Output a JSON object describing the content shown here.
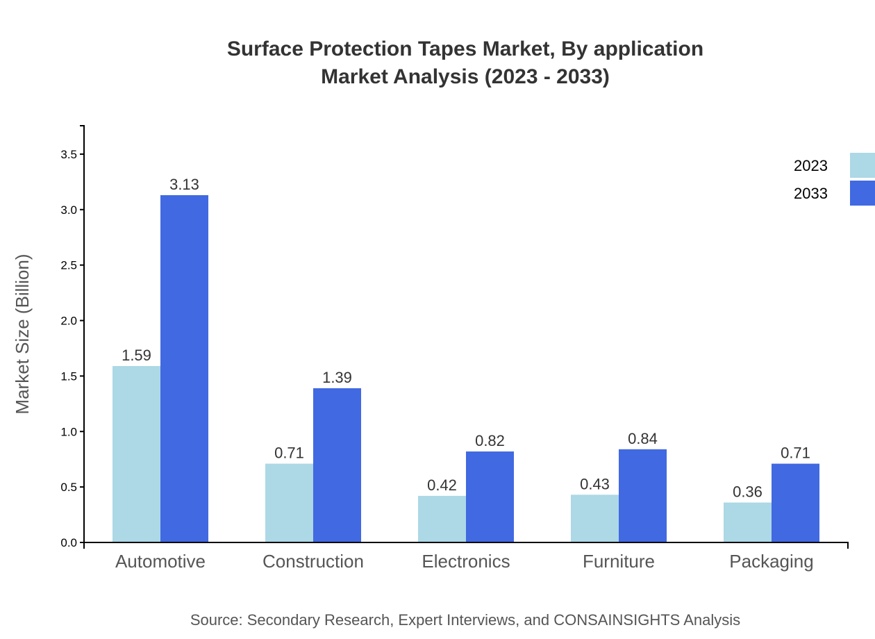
{
  "chart_data": {
    "type": "bar",
    "title": [
      "Surface Protection Tapes Market, By application",
      "Market Analysis (2023 - 2033)"
    ],
    "xlabel": "",
    "ylabel": "Market Size (Billion)",
    "categories": [
      "Automotive",
      "Construction",
      "Electronics",
      "Furniture",
      "Packaging"
    ],
    "series": [
      {
        "name": "2023",
        "color": "#add8e6",
        "values": [
          1.59,
          0.71,
          0.42,
          0.43,
          0.36
        ]
      },
      {
        "name": "2033",
        "color": "#4169e1",
        "values": [
          3.13,
          1.39,
          0.82,
          0.84,
          0.71
        ]
      }
    ],
    "ylim": [
      0,
      3.756
    ],
    "yticks": [
      "0.0",
      "0.5",
      "1.0",
      "1.5",
      "2.0",
      "2.5",
      "3.0",
      "3.5"
    ],
    "grid": false,
    "legend": "top-right",
    "source": "Source: Secondary Research, Expert Interviews, and CONSAINSIGHTS Analysis"
  }
}
